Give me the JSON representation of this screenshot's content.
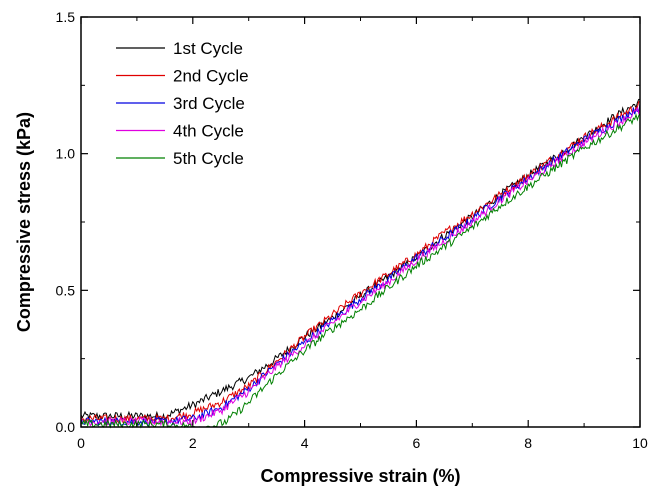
{
  "chart_data": {
    "type": "line",
    "title": "",
    "xlabel": "Compressive strain (%)",
    "ylabel": "Compressive stress (kPa)",
    "xlim": [
      0,
      10
    ],
    "ylim": [
      0,
      1.5
    ],
    "x_ticks": [
      0,
      2,
      4,
      6,
      8,
      10
    ],
    "y_ticks": [
      0.0,
      0.5,
      1.0,
      1.5
    ],
    "x_tick_labels": [
      "0",
      "2",
      "4",
      "6",
      "8",
      "10"
    ],
    "y_tick_labels": [
      "0.0",
      "0.5",
      "1.0",
      "1.5"
    ],
    "grid": false,
    "legend_position": "top-left",
    "series": [
      {
        "name": "1st Cycle",
        "color": "#000000",
        "x": [
          0,
          1,
          1.5,
          2,
          2.5,
          3,
          3.5,
          4,
          4.5,
          5,
          5.5,
          6,
          6.5,
          7,
          7.5,
          8,
          8.5,
          9,
          9.5,
          10
        ],
        "y": [
          0.04,
          0.04,
          0.04,
          0.08,
          0.13,
          0.18,
          0.25,
          0.33,
          0.4,
          0.48,
          0.55,
          0.62,
          0.7,
          0.77,
          0.85,
          0.92,
          0.99,
          1.06,
          1.13,
          1.19
        ]
      },
      {
        "name": "2nd Cycle",
        "color": "#e00000",
        "x": [
          0,
          1,
          1.5,
          2,
          2.5,
          3,
          3.5,
          4,
          4.5,
          5,
          5.5,
          6,
          6.5,
          7,
          7.5,
          8,
          8.5,
          9,
          9.5,
          10
        ],
        "y": [
          0.03,
          0.03,
          0.03,
          0.05,
          0.09,
          0.15,
          0.24,
          0.33,
          0.41,
          0.49,
          0.56,
          0.63,
          0.71,
          0.78,
          0.85,
          0.92,
          0.99,
          1.06,
          1.12,
          1.18
        ]
      },
      {
        "name": "3rd Cycle",
        "color": "#0000e0",
        "x": [
          0,
          1,
          1.5,
          2,
          2.5,
          3,
          3.5,
          4,
          4.5,
          5,
          5.5,
          6,
          6.5,
          7,
          7.5,
          8,
          8.5,
          9,
          9.5,
          10
        ],
        "y": [
          0.02,
          0.02,
          0.02,
          0.03,
          0.07,
          0.14,
          0.23,
          0.31,
          0.39,
          0.47,
          0.54,
          0.62,
          0.69,
          0.76,
          0.84,
          0.91,
          0.98,
          1.05,
          1.11,
          1.17
        ]
      },
      {
        "name": "4th Cycle",
        "color": "#e000e0",
        "x": [
          0,
          1,
          1.5,
          2,
          2.5,
          3,
          3.5,
          4,
          4.5,
          5,
          5.5,
          6,
          6.5,
          7,
          7.5,
          8,
          8.5,
          9,
          9.5,
          10
        ],
        "y": [
          0.02,
          0.02,
          0.02,
          0.02,
          0.06,
          0.13,
          0.22,
          0.3,
          0.38,
          0.46,
          0.53,
          0.61,
          0.68,
          0.75,
          0.83,
          0.9,
          0.97,
          1.04,
          1.1,
          1.16
        ]
      },
      {
        "name": "5th Cycle",
        "color": "#008000",
        "x": [
          0,
          1,
          1.5,
          2,
          2.3,
          2.6,
          3,
          3.5,
          4,
          4.5,
          5,
          5.5,
          6,
          6.5,
          7,
          7.5,
          8,
          8.5,
          9,
          9.5,
          10
        ],
        "y": [
          0.01,
          0.01,
          0.01,
          0.0,
          0.0,
          0.02,
          0.09,
          0.19,
          0.28,
          0.36,
          0.43,
          0.51,
          0.59,
          0.66,
          0.73,
          0.81,
          0.88,
          0.95,
          1.02,
          1.08,
          1.14
        ]
      }
    ]
  }
}
